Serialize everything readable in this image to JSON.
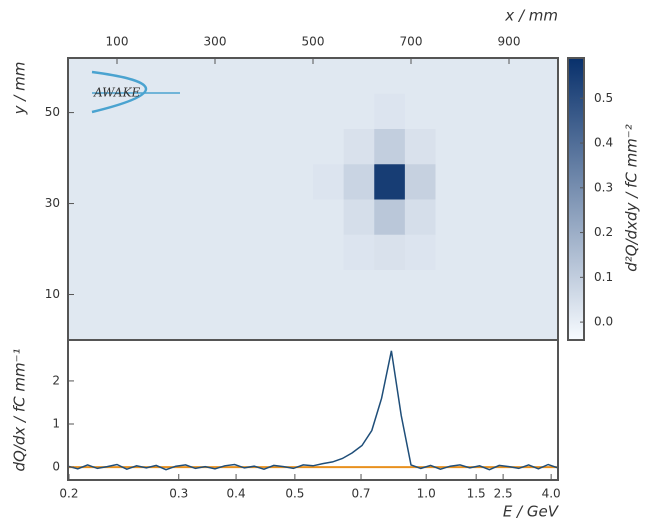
{
  "chart_data": [
    {
      "type": "heatmap",
      "logo_text": "AWAKE",
      "x_label": "x / mm",
      "y_label": "y / mm",
      "colorbar_label": "d²Q/dxdy / fC mm⁻²",
      "xlim": [
        0,
        1000
      ],
      "xticks": [
        100,
        300,
        500,
        700,
        900
      ],
      "ylim": [
        0,
        62
      ],
      "yticks": [
        10,
        30,
        50
      ],
      "clim": [
        -0.04,
        0.59
      ],
      "cticks": [
        {
          "value": 0,
          "label": "0.0"
        },
        0.1,
        0.2,
        0.3,
        0.4,
        0.5
      ],
      "z": [
        [
          0.02,
          0.02,
          0.02,
          0.02,
          0.02,
          0.02,
          0.02,
          0.02,
          0.02,
          0.02,
          0.02,
          0.02,
          0.02,
          0.02,
          0.02,
          0.02
        ],
        [
          0.02,
          0.02,
          0.02,
          0.02,
          0.02,
          0.02,
          0.02,
          0.02,
          0.02,
          0.02,
          0.02,
          0.02,
          0.02,
          0.02,
          0.02,
          0.02
        ],
        [
          0.02,
          0.02,
          0.02,
          0.02,
          0.02,
          0.02,
          0.02,
          0.02,
          0.02,
          0.03,
          0.04,
          0.03,
          0.02,
          0.02,
          0.02,
          0.02
        ],
        [
          0.02,
          0.02,
          0.02,
          0.02,
          0.02,
          0.02,
          0.02,
          0.02,
          0.02,
          0.05,
          0.12,
          0.05,
          0.02,
          0.02,
          0.02,
          0.02
        ],
        [
          0.02,
          0.02,
          0.02,
          0.02,
          0.02,
          0.02,
          0.02,
          0.02,
          0.03,
          0.08,
          0.55,
          0.09,
          0.02,
          0.02,
          0.02,
          0.02
        ],
        [
          0.02,
          0.02,
          0.02,
          0.02,
          0.02,
          0.02,
          0.02,
          0.02,
          0.02,
          0.04,
          0.1,
          0.04,
          0.02,
          0.02,
          0.02,
          0.02
        ],
        [
          0.02,
          0.02,
          0.02,
          0.02,
          0.02,
          0.02,
          0.02,
          0.02,
          0.02,
          0.02,
          0.03,
          0.02,
          0.02,
          0.02,
          0.02,
          0.02
        ],
        [
          0.02,
          0.02,
          0.02,
          0.02,
          0.02,
          0.02,
          0.02,
          0.02,
          0.02,
          0.02,
          0.02,
          0.02,
          0.02,
          0.02,
          0.02,
          0.02
        ]
      ]
    },
    {
      "type": "line",
      "x_label": "E / GeV",
      "y_label": "dQ/dx / fC mm⁻¹",
      "xlim": [
        0,
        1000
      ],
      "xticks": [
        {
          "value": 2,
          "label": "0.2"
        },
        {
          "value": 226,
          "label": "0.3"
        },
        {
          "value": 343,
          "label": "0.4"
        },
        {
          "value": 463,
          "label": "0.5"
        },
        {
          "value": 598,
          "label": "0.7"
        },
        {
          "value": 731,
          "label": "1.0"
        },
        {
          "value": 833,
          "label": "1.5"
        },
        {
          "value": 888,
          "label": "2.5"
        },
        {
          "value": 986,
          "label": "4.0"
        }
      ],
      "ylim": [
        -0.3,
        2.95
      ],
      "yticks": [
        0,
        1,
        2
      ],
      "x": [
        0,
        20,
        40,
        60,
        80,
        100,
        120,
        140,
        160,
        180,
        200,
        220,
        240,
        260,
        280,
        300,
        320,
        340,
        360,
        380,
        400,
        420,
        440,
        460,
        480,
        500,
        520,
        540,
        560,
        580,
        600,
        620,
        640,
        660,
        680,
        700,
        720,
        740,
        760,
        780,
        800,
        820,
        840,
        860,
        880,
        900,
        920,
        940,
        960,
        980,
        1000
      ],
      "series": [
        {
          "color": "#e8901e",
          "values": [
            0,
            0,
            0,
            0,
            0,
            0,
            0,
            0,
            0,
            0,
            0,
            0,
            0,
            0,
            0,
            0,
            0,
            0,
            0,
            0,
            0,
            0,
            0,
            0,
            0,
            0,
            0,
            0,
            0,
            0,
            0,
            0,
            0,
            0,
            0,
            0,
            0,
            0,
            0,
            0,
            0,
            0,
            0,
            0,
            0,
            0,
            0,
            0,
            0,
            0,
            0
          ]
        },
        {
          "color": "#1f4e79",
          "values": [
            0.02,
            -0.04,
            0.05,
            -0.03,
            0.01,
            0.06,
            -0.05,
            0.03,
            -0.02,
            0.04,
            -0.06,
            0.02,
            0.05,
            -0.03,
            0.01,
            -0.04,
            0.03,
            0.06,
            -0.02,
            0.02,
            -0.05,
            0.04,
            0.01,
            -0.03,
            0.05,
            0.03,
            0.08,
            0.12,
            0.2,
            0.33,
            0.5,
            0.85,
            1.6,
            2.7,
            1.2,
            0.05,
            -0.03,
            0.04,
            -0.05,
            0.02,
            0.05,
            -0.02,
            0.03,
            -0.06,
            0.04,
            0.01,
            -0.03,
            0.05,
            -0.04,
            0.06,
            -0.02
          ]
        }
      ]
    }
  ]
}
